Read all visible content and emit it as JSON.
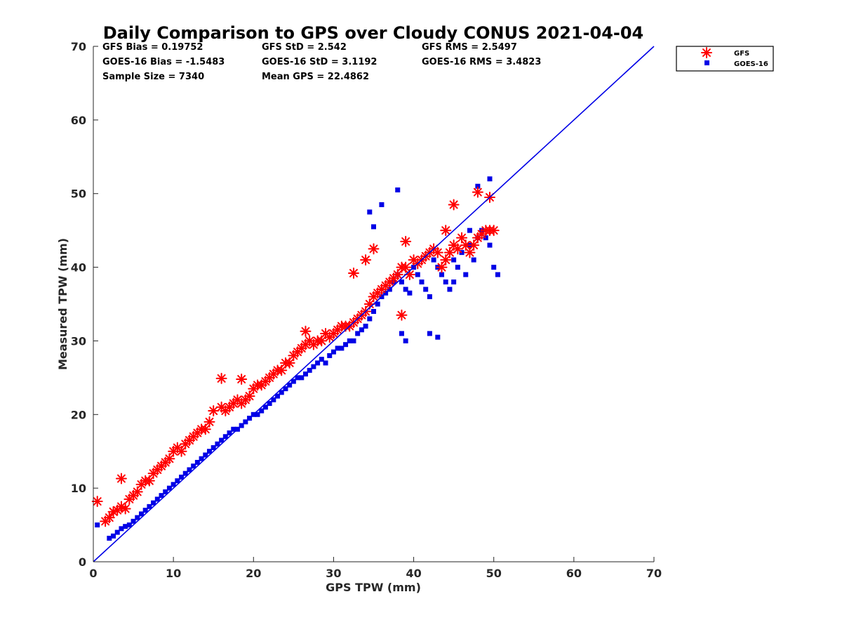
{
  "chart_data": {
    "type": "scatter",
    "title": "Daily Comparison to GPS over Cloudy CONUS 2021-04-04",
    "xlabel": "GPS TPW (mm)",
    "ylabel": "Measured TPW (mm)",
    "xlim": [
      0,
      70
    ],
    "ylim": [
      0,
      70
    ],
    "xticks": [
      "0",
      "10",
      "20",
      "30",
      "40",
      "50",
      "60",
      "70"
    ],
    "yticks": [
      "0",
      "10",
      "20",
      "30",
      "40",
      "50",
      "60",
      "70"
    ],
    "grid": false,
    "legend_position": "outside-top-right",
    "stats": [
      [
        "GFS Bias = 0.19752",
        "GFS StD = 2.542",
        "GFS RMS = 2.5497"
      ],
      [
        "GOES-16 Bias = -1.5483",
        "GOES-16 StD = 3.1192",
        "GOES-16 RMS = 3.4823"
      ],
      [
        "Sample Size = 7340",
        "Mean GPS = 22.4862",
        ""
      ]
    ],
    "reference_line": {
      "x": [
        0,
        70
      ],
      "y": [
        0,
        70
      ],
      "color": "#0000e6"
    },
    "series": [
      {
        "name": "GFS",
        "marker": "asterisk",
        "color": "#ff0000",
        "x": [
          0.5,
          1.5,
          2,
          2.5,
          3,
          3.5,
          4,
          4.5,
          5,
          5.5,
          6,
          6.5,
          7,
          7.5,
          8,
          8.5,
          9,
          9.5,
          10,
          10.5,
          11,
          11.5,
          12,
          12.5,
          13,
          13.5,
          14,
          14.5,
          15,
          16,
          16.5,
          17,
          17.5,
          18,
          18.5,
          19,
          19.5,
          20,
          20.5,
          21,
          21.5,
          22,
          22.5,
          23,
          23.5,
          24,
          24.5,
          25,
          25.5,
          26,
          26.5,
          27,
          27.5,
          28,
          28.5,
          29,
          29.5,
          30,
          30.5,
          31,
          31.5,
          32,
          32.5,
          33,
          33.5,
          34,
          34.5,
          35,
          35.5,
          36,
          36.5,
          37,
          37.5,
          38,
          38.5,
          39,
          39.5,
          40,
          40.5,
          41,
          41.5,
          42,
          42.5,
          43,
          43.5,
          44,
          44.5,
          45,
          45.5,
          46,
          46.5,
          47,
          47.5,
          48,
          48.5,
          49,
          49.5,
          50,
          3.5,
          12,
          16,
          18.5,
          26.5,
          32.5,
          34,
          35,
          38.5,
          39,
          44,
          45,
          48,
          49.5
        ],
        "y": [
          8.2,
          5.5,
          6,
          6.8,
          7,
          7.5,
          7.2,
          8.5,
          9,
          9.5,
          10.5,
          11,
          11,
          12,
          12.5,
          13,
          13.5,
          14,
          15,
          15.5,
          15,
          16,
          16.5,
          17,
          17.5,
          18,
          18,
          19,
          20.5,
          21,
          20.5,
          21,
          21.5,
          22,
          21.5,
          22,
          22.5,
          23.5,
          24,
          24,
          24.5,
          25,
          25.5,
          26,
          26,
          27,
          27,
          28,
          28.5,
          29,
          29.5,
          30,
          29.5,
          30,
          30,
          31,
          30.5,
          31,
          31.5,
          32,
          32,
          32,
          32.5,
          33,
          33.5,
          34,
          35,
          36,
          36.5,
          37,
          37.5,
          38,
          38.5,
          39,
          40,
          40,
          39,
          41,
          40.5,
          41,
          41.5,
          42,
          42.5,
          42,
          40,
          41,
          42,
          43,
          42.5,
          44,
          43,
          42,
          43,
          44,
          44.5,
          45,
          45,
          45,
          11.3,
          16.5,
          24.9,
          24.8,
          31.3,
          39.2,
          41,
          42.5,
          33.5,
          43.5,
          45,
          48.5,
          50.2,
          49.5
        ]
      },
      {
        "name": "GOES-16",
        "marker": "square",
        "color": "#0000e6",
        "x": [
          0.5,
          2,
          2.5,
          3,
          3.5,
          4,
          4.5,
          5,
          5.5,
          6,
          6.5,
          7,
          7.5,
          8,
          8.5,
          9,
          9.5,
          10,
          10.5,
          11,
          11.5,
          12,
          12.5,
          13,
          13.5,
          14,
          14.5,
          15,
          15.5,
          16,
          16.5,
          17,
          17.5,
          18,
          18.5,
          19,
          19.5,
          20,
          20.5,
          21,
          21.5,
          22,
          22.5,
          23,
          23.5,
          24,
          24.5,
          25,
          25.5,
          26,
          26.5,
          27,
          27.5,
          28,
          28.5,
          29,
          29.5,
          30,
          30.5,
          31,
          31.5,
          32,
          32.5,
          33,
          33.5,
          34,
          34.5,
          35,
          35.5,
          36,
          36.5,
          37,
          37.5,
          38,
          38.5,
          39,
          39.5,
          40,
          40.5,
          41,
          41.5,
          42,
          42.5,
          43,
          43.5,
          44,
          44.5,
          45,
          45.5,
          46,
          46.5,
          47,
          47.5,
          48,
          48.5,
          49,
          49.5,
          50,
          50.5,
          34.5,
          35,
          36,
          38,
          38.5,
          39,
          42,
          43,
          45,
          47,
          48,
          49.5
        ],
        "y": [
          5,
          3.2,
          3.5,
          4,
          4.5,
          4.8,
          5,
          5.5,
          6,
          6.5,
          7,
          7.5,
          8,
          8.5,
          9,
          9.5,
          10,
          10.5,
          11,
          11.5,
          12,
          12.5,
          13,
          13.5,
          14,
          14.5,
          15,
          15.5,
          16,
          16.5,
          17,
          17.5,
          18,
          18,
          18.5,
          19,
          19.5,
          20,
          20,
          20.5,
          21,
          21.5,
          22,
          22.5,
          23,
          23.5,
          24,
          24.5,
          25,
          25,
          25.5,
          26,
          26.5,
          27,
          27.5,
          27,
          28,
          28.5,
          29,
          29,
          29.5,
          30,
          30,
          31,
          31.5,
          32,
          33,
          34,
          35,
          36,
          36.5,
          37,
          38,
          39,
          38,
          37,
          36.5,
          40,
          39,
          38,
          37,
          36,
          41,
          40,
          39,
          38,
          37,
          41,
          40,
          42,
          39,
          43,
          41,
          44,
          45,
          44,
          43,
          40,
          39,
          47.5,
          45.5,
          48.5,
          50.5,
          31,
          30,
          31,
          30.5,
          38,
          45,
          51,
          52
        ]
      }
    ]
  }
}
